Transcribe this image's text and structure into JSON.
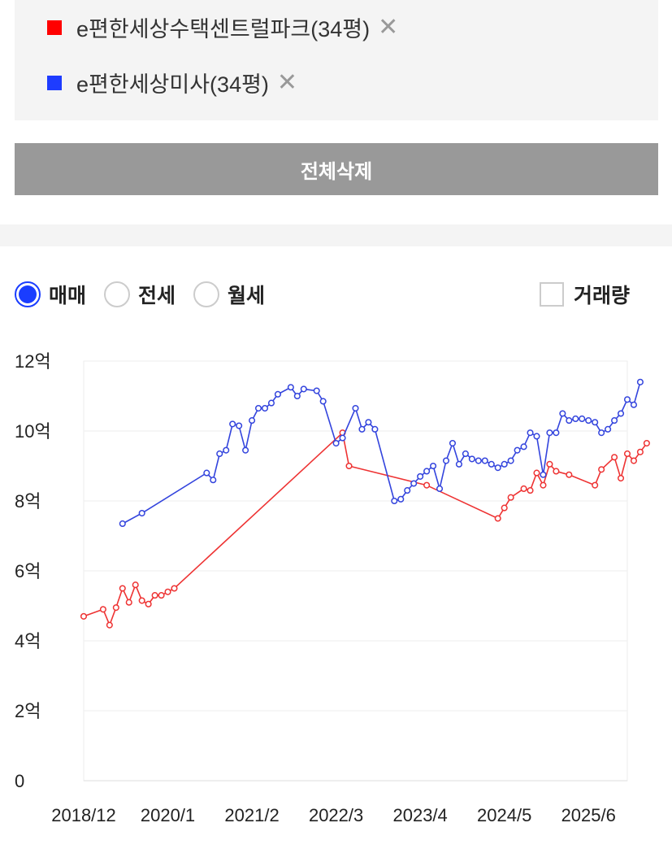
{
  "legend": {
    "items": [
      {
        "label": "e편한세상수택센트럴파크(34평)",
        "color": "#ff0000",
        "remove_icon": "close-icon"
      },
      {
        "label": "e편한세상미사(34평)",
        "color": "#1e3cff",
        "remove_icon": "close-icon"
      }
    ]
  },
  "delete_all_label": "전체삭제",
  "options": {
    "trade_types": [
      {
        "label": "매매",
        "selected": true
      },
      {
        "label": "전세",
        "selected": false
      },
      {
        "label": "월세",
        "selected": false
      }
    ],
    "volume_label": "거래량",
    "volume_checked": false
  },
  "chart_data": {
    "type": "line",
    "ylim": [
      0,
      12
    ],
    "yticks": [
      0,
      2,
      4,
      6,
      8,
      10,
      12
    ],
    "ytick_labels": [
      "0",
      "2억",
      "4억",
      "6억",
      "8억",
      "10억",
      "12억"
    ],
    "xlim": [
      "2018-12",
      "2025-12"
    ],
    "xticks": [
      "2018-12",
      "2020-01",
      "2021-02",
      "2022-03",
      "2023-04",
      "2024-05",
      "2025-06"
    ],
    "xtick_labels": [
      "2018/12",
      "2020/1",
      "2021/2",
      "2022/3",
      "2023/4",
      "2024/5",
      "2025/6"
    ],
    "grid": true,
    "series": [
      {
        "name": "e편한세상수택센트럴파크(34평)",
        "color": "#ee3333",
        "points": [
          [
            "2018-12",
            4.7
          ],
          [
            "2019-03",
            4.9
          ],
          [
            "2019-04",
            4.45
          ],
          [
            "2019-05",
            4.95
          ],
          [
            "2019-06",
            5.5
          ],
          [
            "2019-07",
            5.1
          ],
          [
            "2019-08",
            5.6
          ],
          [
            "2019-09",
            5.15
          ],
          [
            "2019-10",
            5.05
          ],
          [
            "2019-11",
            5.3
          ],
          [
            "2019-12",
            5.3
          ],
          [
            "2020-01",
            5.4
          ],
          [
            "2020-02",
            5.5
          ],
          [
            "2022-04",
            9.95
          ],
          [
            "2022-05",
            9.0
          ],
          [
            "2023-05",
            8.45
          ],
          [
            "2024-04",
            7.5
          ],
          [
            "2024-05",
            7.8
          ],
          [
            "2024-06",
            8.1
          ],
          [
            "2024-08",
            8.35
          ],
          [
            "2024-09",
            8.3
          ],
          [
            "2024-10",
            8.8
          ],
          [
            "2024-11",
            8.45
          ],
          [
            "2024-12",
            9.05
          ],
          [
            "2025-01",
            8.85
          ],
          [
            "2025-03",
            8.75
          ],
          [
            "2025-07",
            8.45
          ],
          [
            "2025-08",
            8.9
          ],
          [
            "2025-10",
            9.25
          ],
          [
            "2025-11",
            8.65
          ],
          [
            "2025-12",
            9.35
          ],
          [
            "2026-01",
            9.15
          ],
          [
            "2026-02",
            9.4
          ],
          [
            "2026-03",
            9.65
          ]
        ]
      },
      {
        "name": "e편한세상미사(34평)",
        "color": "#3344dd",
        "points": [
          [
            "2019-06",
            7.35
          ],
          [
            "2019-09",
            7.65
          ],
          [
            "2020-07",
            8.8
          ],
          [
            "2020-08",
            8.6
          ],
          [
            "2020-09",
            9.35
          ],
          [
            "2020-10",
            9.45
          ],
          [
            "2020-11",
            10.2
          ],
          [
            "2020-12",
            10.15
          ],
          [
            "2021-01",
            9.45
          ],
          [
            "2021-02",
            10.3
          ],
          [
            "2021-03",
            10.65
          ],
          [
            "2021-04",
            10.65
          ],
          [
            "2021-05",
            10.8
          ],
          [
            "2021-06",
            11.05
          ],
          [
            "2021-08",
            11.25
          ],
          [
            "2021-09",
            11.0
          ],
          [
            "2021-10",
            11.2
          ],
          [
            "2021-12",
            11.15
          ],
          [
            "2022-01",
            10.85
          ],
          [
            "2022-03",
            9.65
          ],
          [
            "2022-04",
            9.8
          ],
          [
            "2022-06",
            10.65
          ],
          [
            "2022-07",
            10.05
          ],
          [
            "2022-08",
            10.25
          ],
          [
            "2022-09",
            10.05
          ],
          [
            "2022-12",
            8.0
          ],
          [
            "2023-01",
            8.05
          ],
          [
            "2023-02",
            8.3
          ],
          [
            "2023-03",
            8.5
          ],
          [
            "2023-04",
            8.7
          ],
          [
            "2023-05",
            8.85
          ],
          [
            "2023-06",
            9.0
          ],
          [
            "2023-07",
            8.35
          ],
          [
            "2023-08",
            9.15
          ],
          [
            "2023-09",
            9.65
          ],
          [
            "2023-10",
            9.05
          ],
          [
            "2023-11",
            9.35
          ],
          [
            "2023-12",
            9.2
          ],
          [
            "2024-01",
            9.15
          ],
          [
            "2024-02",
            9.15
          ],
          [
            "2024-03",
            9.05
          ],
          [
            "2024-04",
            8.95
          ],
          [
            "2024-05",
            9.05
          ],
          [
            "2024-06",
            9.15
          ],
          [
            "2024-07",
            9.45
          ],
          [
            "2024-08",
            9.55
          ],
          [
            "2024-09",
            9.95
          ],
          [
            "2024-10",
            9.85
          ],
          [
            "2024-11",
            8.75
          ],
          [
            "2024-12",
            9.95
          ],
          [
            "2025-01",
            9.95
          ],
          [
            "2025-02",
            10.5
          ],
          [
            "2025-03",
            10.3
          ],
          [
            "2025-04",
            10.35
          ],
          [
            "2025-05",
            10.35
          ],
          [
            "2025-06",
            10.3
          ],
          [
            "2025-07",
            10.25
          ],
          [
            "2025-08",
            9.95
          ],
          [
            "2025-09",
            10.05
          ],
          [
            "2025-10",
            10.3
          ],
          [
            "2025-11",
            10.5
          ],
          [
            "2025-12",
            10.9
          ],
          [
            "2026-01",
            10.75
          ],
          [
            "2026-02",
            11.4
          ]
        ]
      }
    ]
  }
}
